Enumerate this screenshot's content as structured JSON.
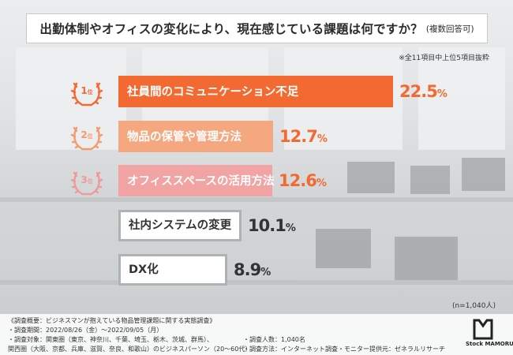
{
  "title": {
    "main": "出勤体制やオフィスの変化により、現在感じている課題は何ですか？",
    "sub": "(複数回答可)"
  },
  "note_top": "※全11項目中上位5項目抜粋",
  "colors": {
    "rank1": "#f26a32",
    "rank2": "#f5a77f",
    "rank3": "#f2a3a3",
    "other_fill": "#ffffff",
    "other_border": "#aeb2b5",
    "text_dark": "#333333"
  },
  "badges": [
    {
      "rank": "1",
      "suffix": "位",
      "color": "#f26a32"
    },
    {
      "rank": "2",
      "suffix": "位",
      "color": "#f39b6e"
    },
    {
      "rank": "3",
      "suffix": "位",
      "color": "#ef9a9a"
    }
  ],
  "chart_data": {
    "type": "bar",
    "orientation": "horizontal",
    "categories": [
      "社員間のコミュニケーション不足",
      "物品の保管や管理方法",
      "オフィススペースの活用方法",
      "社内システムの変更",
      "DX化"
    ],
    "values": [
      22.5,
      12.7,
      12.6,
      10.1,
      8.9
    ],
    "value_labels": [
      {
        "num": "22.5",
        "unit": "%"
      },
      {
        "num": "12.7",
        "unit": "%"
      },
      {
        "num": "12.6",
        "unit": "%"
      },
      {
        "num": "10.1",
        "unit": "%"
      },
      {
        "num": "8.9",
        "unit": "%"
      }
    ],
    "unit": "%",
    "xlim": [
      0,
      22.5
    ],
    "grid": false,
    "legend": "none"
  },
  "sample_note": "(n=1,040人)",
  "footer": {
    "line1": "《調査概要：ビジネスマンが抱えている物品管理課題に関する実態調査》",
    "line2": "・調査期間：2022/08/26（金）〜2022/09/05（月）",
    "line3": "・調査対象：関東圏（東京、神奈川、千葉、埼玉、栃木、茨城、群馬）、",
    "line4": "関西圏（大阪、京都、兵庫、滋賀、奈良、和歌山）のビジネスパーソン（20〜60代）",
    "line5a": "・調査人数：1,040名",
    "line5b": "・調査方法：インターネット調査",
    "line5c": "・モニター提供元：ゼネラルリサーチ"
  },
  "logo": {
    "text": "Stock MAMORU",
    "icon": "stock-mamoru-logo-mark"
  }
}
